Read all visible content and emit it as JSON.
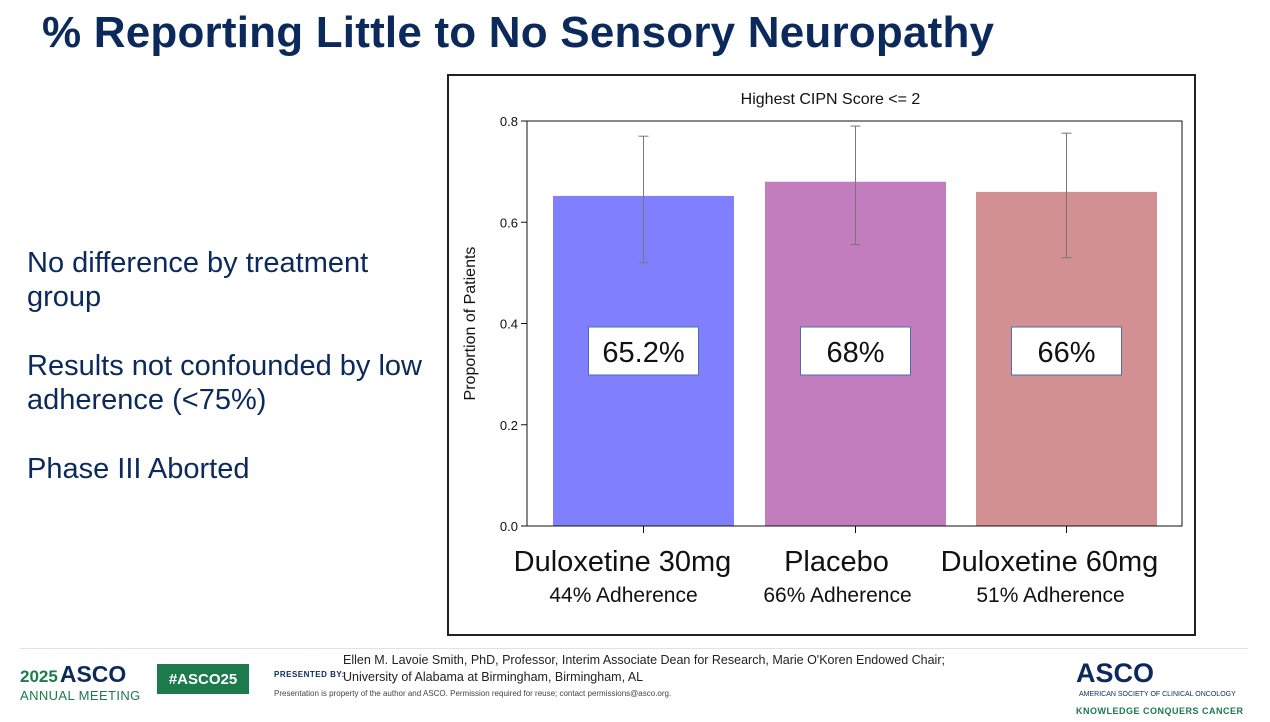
{
  "slide": {
    "title": "% Reporting Little to No Sensory Neuropathy",
    "bullets": [
      "No difference by treatment group",
      "Results not confounded by low adherence (<75%)",
      "Phase III Aborted"
    ]
  },
  "chart_data": {
    "type": "bar",
    "title": "Highest CIPN Score <= 2",
    "ylabel": "Proportion of Patients",
    "xlabel": "",
    "ylim": [
      0,
      0.8
    ],
    "yticks": [
      0.0,
      0.2,
      0.4,
      0.6,
      0.8
    ],
    "ytick_labels": [
      "0.0",
      "0.2",
      "0.4",
      "0.6",
      "0.8"
    ],
    "categories": [
      "Duloxetine 30mg",
      "Placebo",
      "Duloxetine 60mg"
    ],
    "sublabels": [
      "44% Adherence",
      "66% Adherence",
      "51% Adherence"
    ],
    "values": [
      0.652,
      0.68,
      0.66
    ],
    "error_low": [
      0.52,
      0.556,
      0.53
    ],
    "error_high": [
      0.77,
      0.79,
      0.776
    ],
    "data_labels": [
      "65.2%",
      "68%",
      "66%"
    ],
    "colors": [
      "#8080ff",
      "#c17dbd",
      "#d39092"
    ],
    "grid": false
  },
  "footer": {
    "presented_by": "PRESENTED BY:",
    "presenter": "Ellen M. Lavoie Smith, PhD, Professor, Interim Associate Dean for Research, Marie O'Koren Endowed Chair; University of Alabama at Birmingham, Birmingham, AL",
    "note": "Presentation is property of the author and ASCO. Permission required for reuse; contact permissions@asco.org.",
    "meeting_year": "2025",
    "meeting_brand": "ASCO",
    "meeting_sub": "ANNUAL MEETING",
    "hashtag": "#ASCO25",
    "asco_brand": "ASCO",
    "asco_society": "AMERICAN SOCIETY OF CLINICAL ONCOLOGY",
    "asco_tagline": "KNOWLEDGE CONQUERS CANCER"
  }
}
